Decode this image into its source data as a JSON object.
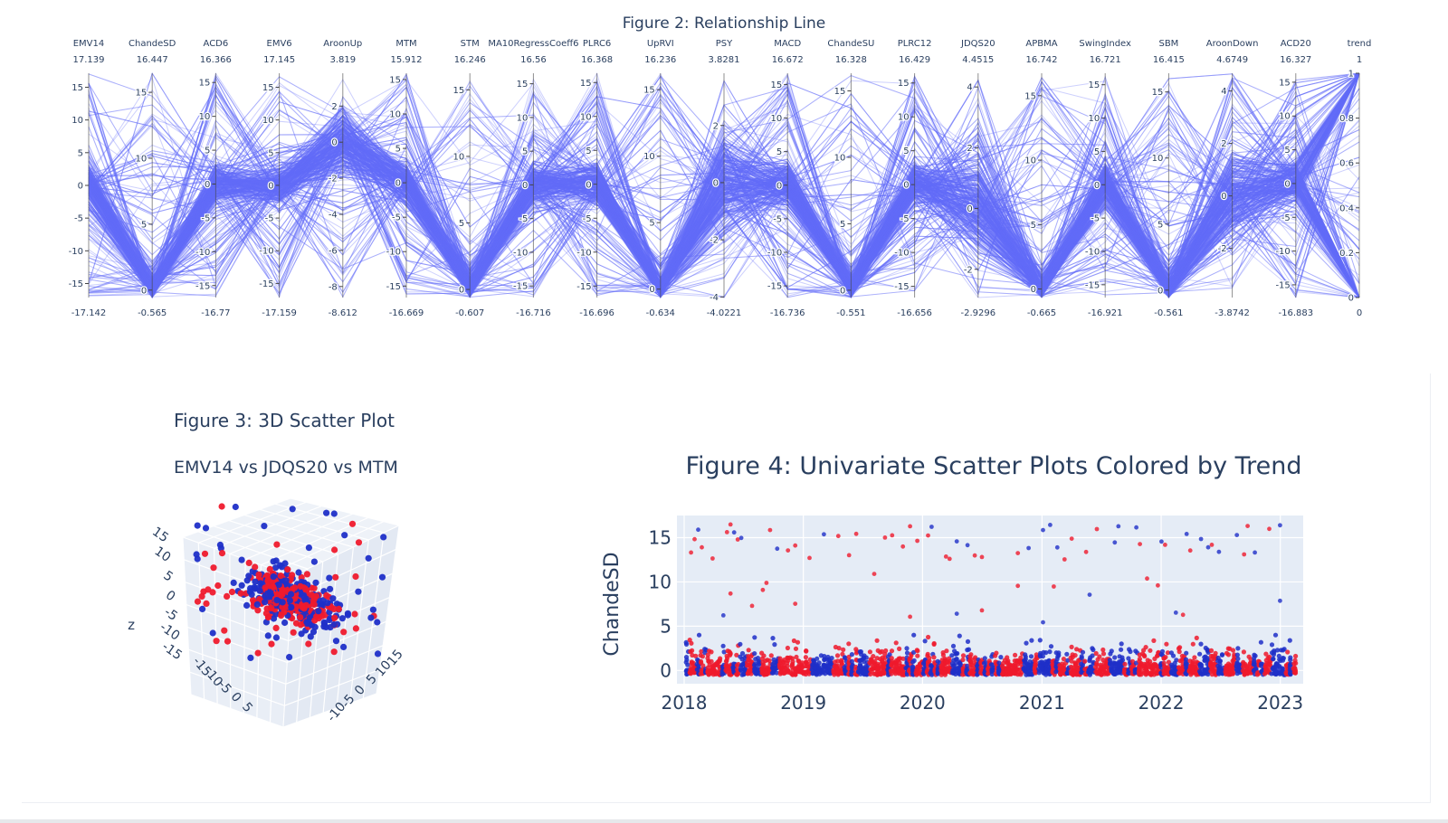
{
  "colors": {
    "parcoords_line": "#636efa",
    "plot_bg": "#e5ecf6",
    "grid": "#ffffff",
    "text": "#2a3f5f",
    "trend_up": "#ef1a2d",
    "trend_down": "#1f2fc8",
    "scene_grid": "#c8d4e3"
  },
  "chart_data": [
    {
      "type": "parcoords",
      "title": "Figure 2: Relationship Line",
      "dimensions": [
        {
          "label": "EMV14",
          "max": "17.139",
          "min": "-17.142",
          "range": [
            -17.142,
            17.139
          ],
          "ticks": [
            "15",
            "10",
            "5",
            "0",
            "-5",
            "-10",
            "-15"
          ],
          "tickvals": [
            15,
            10,
            5,
            0,
            -5,
            -10,
            -15
          ]
        },
        {
          "label": "ChandeSD",
          "max": "16.447",
          "min": "-0.565",
          "range": [
            -0.565,
            16.447
          ],
          "ticks": [
            "15",
            "10",
            "5",
            "0"
          ],
          "tickvals": [
            15,
            10,
            5,
            0
          ]
        },
        {
          "label": "ACD6",
          "max": "16.366",
          "min": "-16.77",
          "range": [
            -16.77,
            16.366
          ],
          "ticks": [
            "15",
            "10",
            "5",
            "0",
            "-5",
            "-10",
            "-15"
          ],
          "tickvals": [
            15,
            10,
            5,
            0,
            -5,
            -10,
            -15
          ]
        },
        {
          "label": "EMV6",
          "max": "17.145",
          "min": "-17.159",
          "range": [
            -17.159,
            17.145
          ],
          "ticks": [
            "15",
            "10",
            "5",
            "0",
            "-5",
            "-10",
            "-15"
          ],
          "tickvals": [
            15,
            10,
            5,
            0,
            -5,
            -10,
            -15
          ]
        },
        {
          "label": "AroonUp",
          "max": "3.819",
          "min": "-8.612",
          "range": [
            -8.612,
            3.819
          ],
          "ticks": [
            "2",
            "0",
            "-2",
            "-4",
            "-6",
            "-8"
          ],
          "tickvals": [
            2,
            0,
            -2,
            -4,
            -6,
            -8
          ]
        },
        {
          "label": "MTM",
          "max": "15.912",
          "min": "-16.669",
          "range": [
            -16.669,
            15.912
          ],
          "ticks": [
            "15",
            "10",
            "5",
            "0",
            "-5",
            "-10",
            "-15"
          ],
          "tickvals": [
            15,
            10,
            5,
            0,
            -5,
            -10,
            -15
          ]
        },
        {
          "label": "STM",
          "max": "16.246",
          "min": "-0.607",
          "range": [
            -0.607,
            16.246
          ],
          "ticks": [
            "15",
            "10",
            "5",
            "0"
          ],
          "tickvals": [
            15,
            10,
            5,
            0
          ]
        },
        {
          "label": "MA10RegressCoeff6",
          "max": "16.56",
          "min": "-16.716",
          "range": [
            -16.716,
            16.56
          ],
          "ticks": [
            "15",
            "10",
            "5",
            "0",
            "-5",
            "-10",
            "-15"
          ],
          "tickvals": [
            15,
            10,
            5,
            0,
            -5,
            -10,
            -15
          ]
        },
        {
          "label": "PLRC6",
          "max": "16.368",
          "min": "-16.696",
          "range": [
            -16.696,
            16.368
          ],
          "ticks": [
            "15",
            "10",
            "5",
            "0",
            "-5",
            "-10",
            "-15"
          ],
          "tickvals": [
            15,
            10,
            5,
            0,
            -5,
            -10,
            -15
          ]
        },
        {
          "label": "UpRVI",
          "max": "16.236",
          "min": "-0.634",
          "range": [
            -0.634,
            16.236
          ],
          "ticks": [
            "15",
            "10",
            "5",
            "0"
          ],
          "tickvals": [
            15,
            10,
            5,
            0
          ]
        },
        {
          "label": "PSY",
          "max": "3.8281",
          "min": "-4.0221",
          "range": [
            -4.0221,
            3.8281
          ],
          "ticks": [
            "2",
            "0",
            "-2",
            "-4"
          ],
          "tickvals": [
            2,
            0,
            -2,
            -4
          ]
        },
        {
          "label": "MACD",
          "max": "16.672",
          "min": "-16.736",
          "range": [
            -16.736,
            16.672
          ],
          "ticks": [
            "15",
            "10",
            "5",
            "0",
            "-5",
            "-10",
            "-15"
          ],
          "tickvals": [
            15,
            10,
            5,
            0,
            -5,
            -10,
            -15
          ]
        },
        {
          "label": "ChandeSU",
          "max": "16.328",
          "min": "-0.551",
          "range": [
            -0.551,
            16.328
          ],
          "ticks": [
            "15",
            "10",
            "5",
            "0"
          ],
          "tickvals": [
            15,
            10,
            5,
            0
          ]
        },
        {
          "label": "PLRC12",
          "max": "16.429",
          "min": "-16.656",
          "range": [
            -16.656,
            16.429
          ],
          "ticks": [
            "15",
            "10",
            "5",
            "0",
            "-5",
            "-10",
            "-15"
          ],
          "tickvals": [
            15,
            10,
            5,
            0,
            -5,
            -10,
            -15
          ]
        },
        {
          "label": "JDQS20",
          "max": "4.4515",
          "min": "-2.9296",
          "range": [
            -2.9296,
            4.4515
          ],
          "ticks": [
            "4",
            "2",
            "0",
            "-2"
          ],
          "tickvals": [
            4,
            2,
            0,
            -2
          ]
        },
        {
          "label": "APBMA",
          "max": "16.742",
          "min": "-0.665",
          "range": [
            -0.665,
            16.742
          ],
          "ticks": [
            "15",
            "10",
            "5",
            "0"
          ],
          "tickvals": [
            15,
            10,
            5,
            0
          ]
        },
        {
          "label": "SwingIndex",
          "max": "16.721",
          "min": "-16.921",
          "range": [
            -16.921,
            16.721
          ],
          "ticks": [
            "15",
            "10",
            "5",
            "0",
            "-5",
            "-10",
            "-15"
          ],
          "tickvals": [
            15,
            10,
            5,
            0,
            -5,
            -10,
            -15
          ]
        },
        {
          "label": "SBM",
          "max": "16.415",
          "min": "-0.561",
          "range": [
            -0.561,
            16.415
          ],
          "ticks": [
            "15",
            "10",
            "5",
            "0"
          ],
          "tickvals": [
            15,
            10,
            5,
            0
          ]
        },
        {
          "label": "AroonDown",
          "max": "4.6749",
          "min": "-3.8742",
          "range": [
            -3.8742,
            4.6749
          ],
          "ticks": [
            "4",
            "2",
            "0",
            "-2"
          ],
          "tickvals": [
            4,
            2,
            0,
            -2
          ]
        },
        {
          "label": "ACD20",
          "max": "16.327",
          "min": "-16.883",
          "range": [
            -16.883,
            16.327
          ],
          "ticks": [
            "15",
            "10",
            "5",
            "0",
            "-5",
            "-10",
            "-15"
          ],
          "tickvals": [
            15,
            10,
            5,
            0,
            -5,
            -10,
            -15
          ]
        },
        {
          "label": "trend",
          "max": "1",
          "min": "0",
          "range": [
            0,
            1
          ],
          "ticks": [
            "1",
            "0.8",
            "0.6",
            "0.4",
            "0.2",
            "0"
          ],
          "tickvals": [
            1,
            0.8,
            0.6,
            0.4,
            0.2,
            0
          ]
        }
      ]
    },
    {
      "type": "scatter3d",
      "title": "Figure 3: 3D Scatter Plot",
      "subtitle": "EMV14 vs JDQS20 vs MTM",
      "axes": {
        "x": "",
        "y": "",
        "z": "z"
      },
      "z_ticks": [
        "15",
        "10",
        "5",
        "0",
        "-5",
        "-10",
        "-15"
      ],
      "x_ticks": [
        "15",
        "10",
        "5",
        "0",
        "-5",
        "-10"
      ],
      "y_ticks": [
        "-15",
        "-10",
        "-5",
        "0",
        "5"
      ],
      "series": [
        {
          "trend": 1,
          "color_key": "trend_up"
        },
        {
          "trend": 0,
          "color_key": "trend_down"
        }
      ]
    },
    {
      "type": "scatter",
      "title": "Figure 4: Univariate Scatter Plots Colored by Trend",
      "xlabel": "",
      "ylabel": "ChandeSD",
      "x_ticks": [
        "2018",
        "2019",
        "2020",
        "2021",
        "2022",
        "2023"
      ],
      "x_range": [
        "2018-01-01",
        "2023-03-01"
      ],
      "y_ticks": [
        15,
        10,
        5,
        0
      ],
      "ylim": [
        -1.5,
        17.5
      ]
    }
  ]
}
